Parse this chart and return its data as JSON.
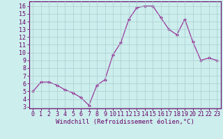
{
  "x": [
    0,
    1,
    2,
    3,
    4,
    5,
    6,
    7,
    8,
    9,
    10,
    11,
    12,
    13,
    14,
    15,
    16,
    17,
    18,
    19,
    20,
    21,
    22,
    23
  ],
  "y": [
    5.0,
    6.2,
    6.2,
    5.8,
    5.2,
    4.8,
    4.2,
    3.2,
    5.8,
    6.5,
    9.7,
    11.3,
    14.3,
    15.8,
    16.0,
    16.0,
    14.5,
    13.0,
    12.3,
    14.3,
    11.4,
    9.0,
    9.3,
    9.0
  ],
  "line_color": "#993399",
  "marker": "D",
  "marker_size": 2.2,
  "bg_color": "#cceeed",
  "grid_color": "#aacccc",
  "ylabel_ticks": [
    3,
    4,
    5,
    6,
    7,
    8,
    9,
    10,
    11,
    12,
    13,
    14,
    15,
    16
  ],
  "xlabel_ticks": [
    0,
    1,
    2,
    3,
    4,
    5,
    6,
    7,
    8,
    9,
    10,
    11,
    12,
    13,
    14,
    15,
    16,
    17,
    18,
    19,
    20,
    21,
    22,
    23
  ],
  "ylim": [
    2.8,
    16.6
  ],
  "xlim": [
    -0.5,
    23.5
  ],
  "xlabel": "Windchill (Refroidissement éolien,°C)",
  "xlabel_fontsize": 6.5,
  "tick_fontsize": 6.0,
  "axis_color": "#660066"
}
